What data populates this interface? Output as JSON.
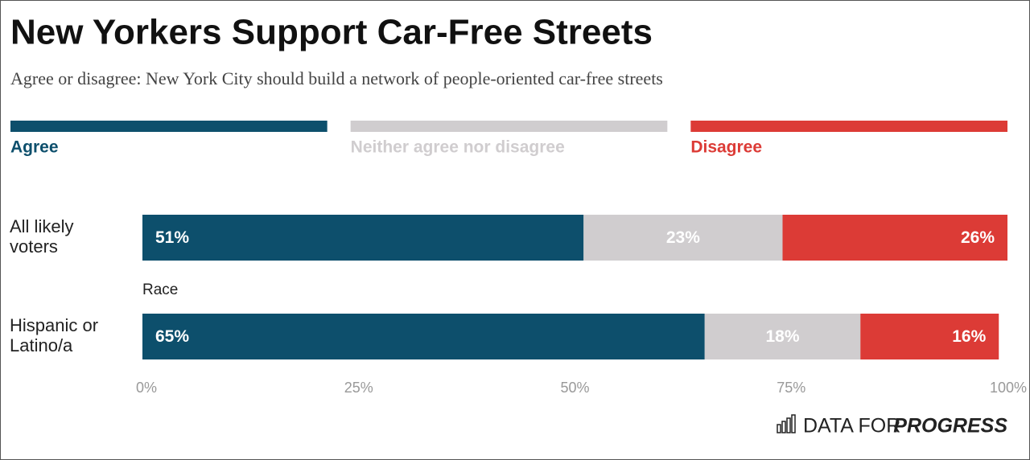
{
  "chart_data": {
    "type": "stacked_bar",
    "orientation": "horizontal",
    "title": "New Yorkers Support Car-Free Streets",
    "subtitle": "Agree or disagree: New York City should build a network of people-oriented car-free streets",
    "categories": [
      "All likely voters",
      "Hispanic or Latino/a"
    ],
    "group_label": "Race",
    "series": [
      {
        "name": "Agree",
        "color": "#0d4f6c",
        "values": [
          51,
          65
        ],
        "value_labels": [
          "51%",
          "65%"
        ]
      },
      {
        "name": "Neither agree nor disagree",
        "color": "#d0cdcf",
        "values": [
          23,
          18
        ],
        "value_labels": [
          "23%",
          "18%"
        ]
      },
      {
        "name": "Disagree",
        "color": "#dc3b36",
        "values": [
          26,
          16
        ],
        "value_labels": [
          "26%",
          "16%"
        ]
      }
    ],
    "xlim": [
      0,
      100
    ],
    "xticks": [
      {
        "value": 0,
        "label": "0%"
      },
      {
        "value": 25,
        "label": "25%"
      },
      {
        "value": 50,
        "label": "50%"
      },
      {
        "value": 75,
        "label": "75%"
      },
      {
        "value": 100,
        "label": "100%"
      }
    ],
    "grid": false,
    "legend": "top",
    "footer": {
      "prefix": "DATA FOR",
      "name": "PROGRESS"
    }
  }
}
